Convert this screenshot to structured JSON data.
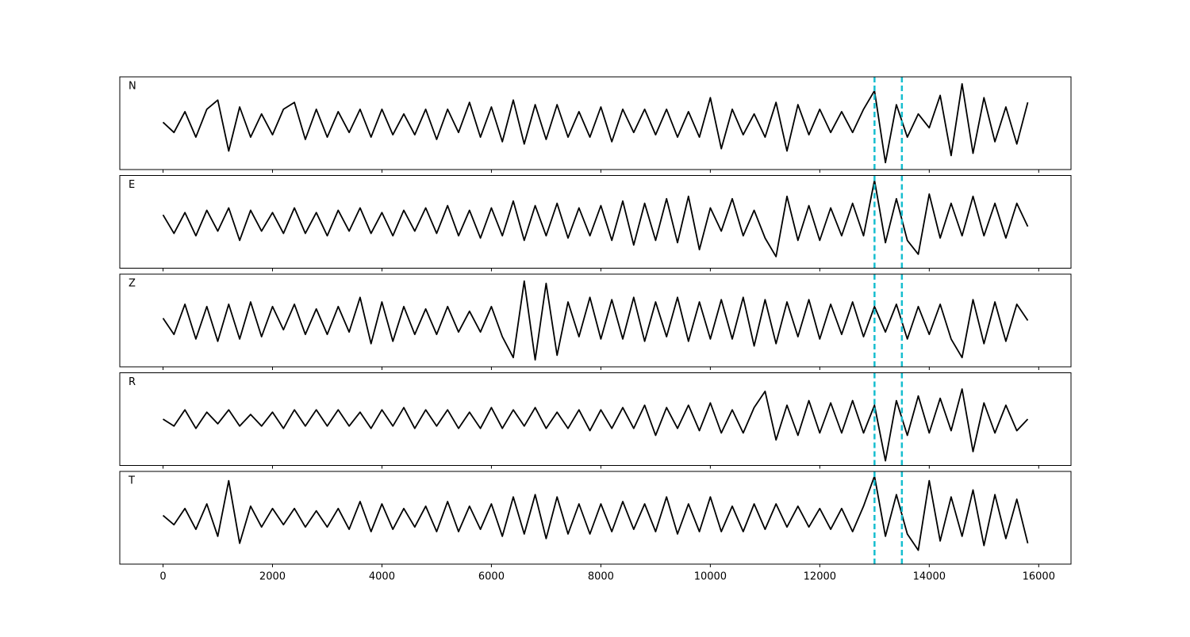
{
  "chart_data": {
    "type": "line",
    "subplots": "stacked",
    "x": [
      0,
      200,
      400,
      600,
      800,
      1000,
      1200,
      1400,
      1600,
      1800,
      2000,
      2200,
      2400,
      2600,
      2800,
      3000,
      3200,
      3400,
      3600,
      3800,
      4000,
      4200,
      4400,
      4600,
      4800,
      5000,
      5200,
      5400,
      5600,
      5800,
      6000,
      6200,
      6400,
      6600,
      6800,
      7000,
      7200,
      7400,
      7600,
      7800,
      8000,
      8200,
      8400,
      8600,
      8800,
      9000,
      9200,
      9400,
      9600,
      9800,
      10000,
      10200,
      10400,
      10600,
      10800,
      11000,
      11200,
      11400,
      11600,
      11800,
      12000,
      12200,
      12400,
      12600,
      12800,
      13000,
      13200,
      13400,
      13600,
      13800,
      14000,
      14200,
      14400,
      14600,
      14800,
      15000,
      15200,
      15400,
      15600,
      15800
    ],
    "series": [
      {
        "name": "N",
        "color": "#000000",
        "values": [
          0.02,
          -0.2,
          0.25,
          -0.3,
          0.3,
          0.5,
          -0.6,
          0.35,
          -0.3,
          0.2,
          -0.25,
          0.3,
          0.45,
          -0.35,
          0.3,
          -0.3,
          0.25,
          -0.2,
          0.3,
          -0.3,
          0.3,
          -0.25,
          0.2,
          -0.25,
          0.3,
          -0.35,
          0.3,
          -0.2,
          0.45,
          -0.3,
          0.35,
          -0.4,
          0.5,
          -0.45,
          0.4,
          -0.35,
          0.4,
          -0.3,
          0.25,
          -0.3,
          0.35,
          -0.4,
          0.3,
          -0.2,
          0.3,
          -0.25,
          0.3,
          -0.3,
          0.25,
          -0.3,
          0.55,
          -0.55,
          0.3,
          -0.25,
          0.2,
          -0.3,
          0.45,
          -0.6,
          0.4,
          -0.25,
          0.3,
          -0.2,
          0.25,
          -0.2,
          0.3,
          0.7,
          -0.85,
          0.4,
          -0.3,
          0.2,
          -0.1,
          0.6,
          -0.7,
          0.85,
          -0.65,
          0.55,
          -0.4,
          0.35,
          -0.45,
          0.45
        ]
      },
      {
        "name": "E",
        "color": "#000000",
        "values": [
          0.15,
          -0.25,
          0.2,
          -0.3,
          0.25,
          -0.2,
          0.3,
          -0.4,
          0.25,
          -0.2,
          0.2,
          -0.25,
          0.3,
          -0.25,
          0.2,
          -0.3,
          0.25,
          -0.2,
          0.3,
          -0.25,
          0.2,
          -0.3,
          0.25,
          -0.2,
          0.3,
          -0.25,
          0.35,
          -0.3,
          0.25,
          -0.35,
          0.3,
          -0.3,
          0.45,
          -0.4,
          0.35,
          -0.3,
          0.4,
          -0.35,
          0.3,
          -0.3,
          0.35,
          -0.4,
          0.45,
          -0.5,
          0.4,
          -0.4,
          0.5,
          -0.45,
          0.55,
          -0.6,
          0.3,
          -0.2,
          0.5,
          -0.3,
          0.25,
          -0.35,
          -0.75,
          0.55,
          -0.4,
          0.35,
          -0.4,
          0.3,
          -0.3,
          0.4,
          -0.3,
          0.9,
          -0.45,
          0.5,
          -0.4,
          -0.7,
          0.6,
          -0.35,
          0.4,
          -0.3,
          0.55,
          -0.3,
          0.4,
          -0.35,
          0.4,
          -0.1
        ]
      },
      {
        "name": "Z",
        "color": "#000000",
        "values": [
          0.05,
          -0.3,
          0.35,
          -0.4,
          0.3,
          -0.45,
          0.35,
          -0.4,
          0.4,
          -0.35,
          0.3,
          -0.2,
          0.35,
          -0.3,
          0.25,
          -0.3,
          0.3,
          -0.25,
          0.5,
          -0.5,
          0.4,
          -0.45,
          0.3,
          -0.3,
          0.25,
          -0.3,
          0.3,
          -0.25,
          0.2,
          -0.25,
          0.3,
          -0.35,
          -0.8,
          0.85,
          -0.85,
          0.8,
          -0.75,
          0.4,
          -0.35,
          0.5,
          -0.4,
          0.45,
          -0.4,
          0.5,
          -0.45,
          0.4,
          -0.35,
          0.5,
          -0.45,
          0.4,
          -0.4,
          0.45,
          -0.4,
          0.5,
          -0.55,
          0.45,
          -0.5,
          0.4,
          -0.35,
          0.45,
          -0.4,
          0.35,
          -0.3,
          0.4,
          -0.35,
          0.3,
          -0.25,
          0.35,
          -0.4,
          0.3,
          -0.3,
          0.35,
          -0.4,
          -0.8,
          0.45,
          -0.5,
          0.4,
          -0.45,
          0.35,
          0.0
        ]
      },
      {
        "name": "R",
        "color": "#000000",
        "values": [
          0.0,
          -0.15,
          0.2,
          -0.2,
          0.15,
          -0.1,
          0.2,
          -0.15,
          0.1,
          -0.15,
          0.15,
          -0.2,
          0.2,
          -0.15,
          0.2,
          -0.15,
          0.2,
          -0.15,
          0.15,
          -0.2,
          0.2,
          -0.15,
          0.25,
          -0.2,
          0.2,
          -0.15,
          0.2,
          -0.2,
          0.15,
          -0.2,
          0.25,
          -0.2,
          0.2,
          -0.15,
          0.25,
          -0.2,
          0.15,
          -0.2,
          0.2,
          -0.25,
          0.2,
          -0.2,
          0.25,
          -0.2,
          0.3,
          -0.35,
          0.25,
          -0.2,
          0.3,
          -0.25,
          0.35,
          -0.3,
          0.2,
          -0.3,
          0.25,
          0.6,
          -0.45,
          0.3,
          -0.35,
          0.4,
          -0.3,
          0.35,
          -0.3,
          0.4,
          -0.3,
          0.3,
          -0.9,
          0.4,
          -0.35,
          0.5,
          -0.3,
          0.45,
          -0.25,
          0.65,
          -0.7,
          0.35,
          -0.3,
          0.3,
          -0.25,
          0.0
        ]
      },
      {
        "name": "T",
        "color": "#000000",
        "values": [
          0.05,
          -0.15,
          0.2,
          -0.25,
          0.3,
          -0.4,
          0.8,
          -0.55,
          0.25,
          -0.2,
          0.2,
          -0.15,
          0.2,
          -0.2,
          0.15,
          -0.2,
          0.2,
          -0.25,
          0.35,
          -0.3,
          0.3,
          -0.25,
          0.2,
          -0.2,
          0.25,
          -0.3,
          0.35,
          -0.3,
          0.25,
          -0.25,
          0.3,
          -0.4,
          0.45,
          -0.35,
          0.5,
          -0.45,
          0.45,
          -0.35,
          0.3,
          -0.35,
          0.3,
          -0.3,
          0.35,
          -0.25,
          0.3,
          -0.3,
          0.45,
          -0.35,
          0.3,
          -0.3,
          0.45,
          -0.3,
          0.25,
          -0.3,
          0.3,
          -0.25,
          0.3,
          -0.2,
          0.25,
          -0.2,
          0.2,
          -0.25,
          0.2,
          -0.3,
          0.25,
          0.9,
          -0.4,
          0.5,
          -0.35,
          -0.7,
          0.8,
          -0.5,
          0.45,
          -0.4,
          0.6,
          -0.6,
          0.5,
          -0.45,
          0.4,
          -0.55
        ]
      }
    ],
    "xlim": [
      -790,
      16590
    ],
    "xticks": [
      0,
      2000,
      4000,
      6000,
      8000,
      10000,
      12000,
      14000,
      16000
    ],
    "ylim": [
      -1,
      1
    ],
    "vlines": {
      "values": [
        13000,
        13500
      ],
      "color": "#17becf",
      "style": "dashed"
    }
  }
}
